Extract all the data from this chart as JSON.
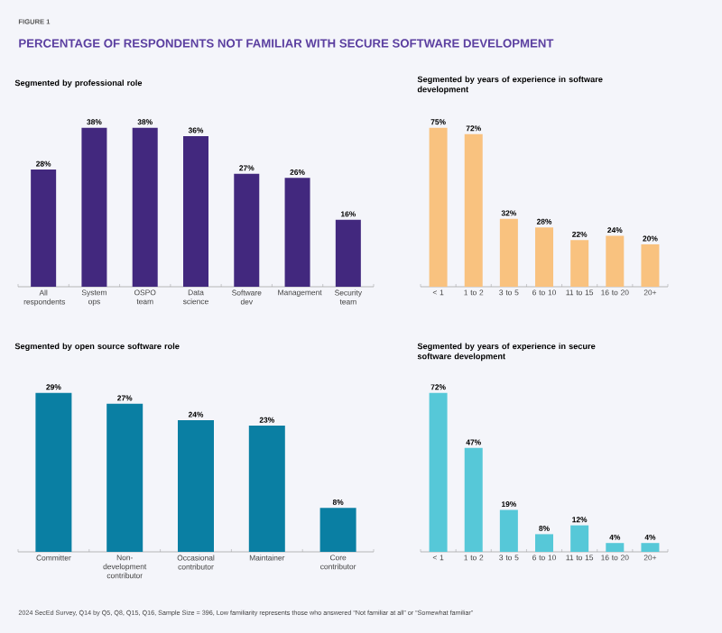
{
  "chart_data": [
    {
      "type": "bar",
      "title": "Segmented by professional role",
      "categories": [
        "All respondents",
        "System ops",
        "OSPO team",
        "Data science",
        "Software dev",
        "Management",
        "Security team"
      ],
      "values": [
        28,
        38,
        38,
        36,
        27,
        26,
        16
      ],
      "value_labels": [
        "28%",
        "38%",
        "38%",
        "36%",
        "27%",
        "26%",
        "16%"
      ],
      "color": "#42287e",
      "annotations": [
        "FIGURE 1",
        "PERCENTAGE OF RESPONDENTS NOT FAMILIAR WITH SECURE SOFTWARE DEVELOPMENT"
      ]
    },
    {
      "type": "bar",
      "title": "Segmented by years of experience in software development",
      "categories": [
        "< 1",
        "1 to 2",
        "3 to 5",
        "6 to 10",
        "11 to 15",
        "16 to 20",
        "20+"
      ],
      "values": [
        75,
        72,
        32,
        28,
        22,
        24,
        20
      ],
      "value_labels": [
        "75%",
        "72%",
        "32%",
        "28%",
        "22%",
        "24%",
        "20%"
      ],
      "color": "#f9c27f"
    },
    {
      "type": "bar",
      "title": "Segmented by open source software role",
      "categories": [
        "Committer",
        "Non-development contributor",
        "Occasional contributor",
        "Maintainer",
        "Core contributor"
      ],
      "values": [
        29,
        27,
        24,
        23,
        8
      ],
      "value_labels": [
        "29%",
        "27%",
        "24%",
        "23%",
        "8%"
      ],
      "color": "#0a7fa3"
    },
    {
      "type": "bar",
      "title": "Segmented by years of experience in secure software development",
      "categories": [
        "< 1",
        "1 to 2",
        "3 to 5",
        "6 to 10",
        "11 to 15",
        "16 to 20",
        "20+"
      ],
      "values": [
        72,
        47,
        19,
        8,
        12,
        4,
        4
      ],
      "value_labels": [
        "72%",
        "47%",
        "19%",
        "8%",
        "12%",
        "4%",
        "4%"
      ],
      "color": "#56c8d8",
      "annotations": [
        "2024 SecEd Survey, Q14 by Q5, Q8, Q15, Q16, Sample Size = 396, Low familiarity represents those who answered “Not familiar at all” or “Somewhat familiar”"
      ]
    }
  ]
}
